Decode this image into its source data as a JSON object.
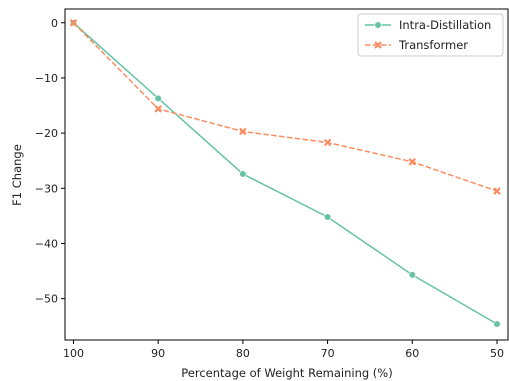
{
  "chart_data": {
    "type": "line",
    "xlabel": "Percentage of Weight Remaining (%)",
    "ylabel": "F1 Change",
    "x": [
      100,
      90,
      80,
      70,
      60,
      50
    ],
    "xlim": [
      101,
      48.7
    ],
    "ylim": [
      -57.5,
      2.5
    ],
    "xticks": [
      100,
      90,
      80,
      70,
      60,
      50
    ],
    "yticks": [
      0,
      -10,
      -20,
      -30,
      -40,
      -50
    ],
    "grid": false,
    "legend_position": "top-right",
    "series": [
      {
        "name": "Intra-Distillation",
        "values": [
          0,
          -13.7,
          -27.4,
          -35.2,
          -45.7,
          -54.6
        ],
        "color": "#66c2a5",
        "line_style": "solid",
        "marker": "circle"
      },
      {
        "name": "Transformer",
        "values": [
          0,
          -15.6,
          -19.7,
          -21.7,
          -25.2,
          -30.5
        ],
        "color": "#fc8d62",
        "line_style": "dashed",
        "marker": "x"
      }
    ]
  }
}
